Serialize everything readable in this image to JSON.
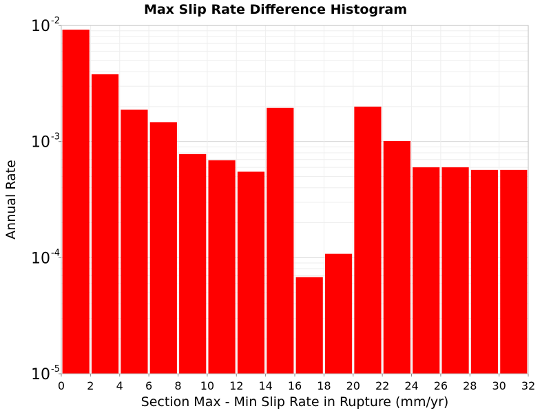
{
  "chart_data": {
    "type": "bar",
    "title": "Max Slip Rate Difference Histogram",
    "xlabel": "Section Max - Min Slip Rate in Rupture (mm/yr)",
    "ylabel": "Annual Rate",
    "x_scale": "linear",
    "y_scale": "log",
    "xlim": [
      0,
      32
    ],
    "ylim": [
      1e-05,
      0.01
    ],
    "grid": true,
    "bar_color": "#ff0000",
    "bin_width": 2,
    "x": [
      1,
      3,
      5,
      7,
      9,
      11,
      13,
      15,
      17,
      19,
      21,
      23,
      25,
      27,
      29,
      31
    ],
    "values": [
      0.0092,
      0.0038,
      0.00188,
      0.00147,
      0.00078,
      0.00069,
      0.00055,
      0.00195,
      6.8e-05,
      0.000108,
      0.002,
      0.00101,
      0.0006,
      0.0006,
      0.00057,
      0.00057
    ],
    "x_ticks": [
      "0",
      "2",
      "4",
      "6",
      "8",
      "10",
      "12",
      "14",
      "16",
      "18",
      "20",
      "22",
      "24",
      "26",
      "28",
      "30",
      "32"
    ],
    "y_ticks": [
      {
        "base": "10",
        "exp": "-5"
      },
      {
        "base": "10",
        "exp": "-4"
      },
      {
        "base": "10",
        "exp": "-3"
      },
      {
        "base": "10",
        "exp": "-2"
      }
    ]
  }
}
